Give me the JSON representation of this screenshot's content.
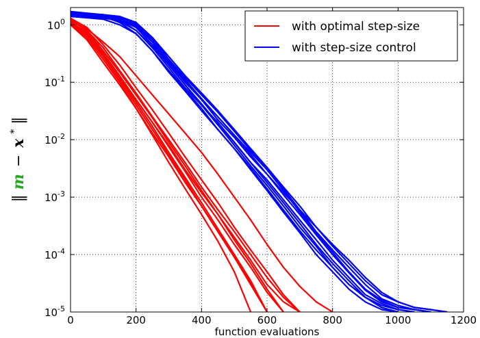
{
  "chart_data": {
    "type": "line",
    "title": "",
    "xlabel": "function evaluations",
    "ylabel": {
      "open": "‖",
      "m": "m",
      "minus": "−",
      "x": "x",
      "star": "*",
      "close": "‖"
    },
    "xlim": [
      0,
      1200
    ],
    "ylim": [
      1e-05,
      2
    ],
    "yscale": "log",
    "grid": true,
    "legend_position": "top-right",
    "x_ticks": [
      {
        "value": 0,
        "label": "0"
      },
      {
        "value": 200,
        "label": "200"
      },
      {
        "value": 400,
        "label": "400"
      },
      {
        "value": 600,
        "label": "600"
      },
      {
        "value": 800,
        "label": "800"
      },
      {
        "value": 1000,
        "label": "1000"
      },
      {
        "value": 1200,
        "label": "1200"
      }
    ],
    "y_ticks": [
      {
        "value": 1,
        "base": "10",
        "exp": "0"
      },
      {
        "value": 0.1,
        "base": "10",
        "exp": "-1"
      },
      {
        "value": 0.01,
        "base": "10",
        "exp": "-2"
      },
      {
        "value": 0.001,
        "base": "10",
        "exp": "-3"
      },
      {
        "value": 0.0001,
        "base": "10",
        "exp": "-4"
      },
      {
        "value": 1e-05,
        "base": "10",
        "exp": "-5"
      }
    ],
    "series": [
      {
        "name": "with optimal step-size",
        "color": "#ff0000",
        "runs": [
          {
            "x": [
              0,
              50,
              100,
              150,
              200,
              250,
              300,
              350,
              400,
              450,
              500,
              550,
              600
            ],
            "y": [
              1.1,
              0.7,
              0.3,
              0.12,
              0.045,
              0.017,
              0.006,
              0.0022,
              0.0008,
              0.00028,
              0.0001,
              3.5e-05,
              1e-05
            ]
          },
          {
            "x": [
              0,
              50,
              100,
              150,
              200,
              250,
              300,
              350,
              400,
              450,
              500,
              550,
              600,
              650
            ],
            "y": [
              1.2,
              0.8,
              0.35,
              0.15,
              0.06,
              0.024,
              0.009,
              0.0035,
              0.0013,
              0.0005,
              0.00018,
              7e-05,
              2.5e-05,
              1e-05
            ]
          },
          {
            "x": [
              0,
              50,
              100,
              150,
              200,
              250,
              300,
              350,
              400,
              450,
              500,
              550
            ],
            "y": [
              1.0,
              0.6,
              0.25,
              0.1,
              0.035,
              0.012,
              0.004,
              0.0014,
              0.0005,
              0.00017,
              5e-05,
              1e-05
            ]
          },
          {
            "x": [
              0,
              50,
              100,
              150,
              200,
              250,
              300,
              350,
              400,
              450,
              500,
              550,
              600,
              650,
              700
            ],
            "y": [
              1.3,
              0.9,
              0.45,
              0.2,
              0.08,
              0.033,
              0.013,
              0.005,
              0.002,
              0.0008,
              0.0003,
              0.00012,
              5e-05,
              2e-05,
              1e-05
            ]
          },
          {
            "x": [
              0,
              50,
              100,
              150,
              200,
              250,
              300,
              350,
              400,
              450,
              500,
              550,
              600,
              650
            ],
            "y": [
              1.1,
              0.75,
              0.32,
              0.13,
              0.05,
              0.02,
              0.0075,
              0.0028,
              0.001,
              0.0004,
              0.00015,
              6e-05,
              2.2e-05,
              1e-05
            ]
          },
          {
            "x": [
              0,
              50,
              100,
              150,
              200,
              250,
              300,
              350,
              400,
              450,
              500,
              550,
              600
            ],
            "y": [
              1.05,
              0.65,
              0.28,
              0.11,
              0.04,
              0.015,
              0.0055,
              0.002,
              0.0007,
              0.00025,
              9e-05,
              3e-05,
              1e-05
            ]
          },
          {
            "x": [
              0,
              50,
              100,
              150,
              200,
              250,
              300,
              350,
              400,
              450,
              500,
              550,
              600,
              650,
              700,
              750,
              800
            ],
            "y": [
              1.2,
              0.85,
              0.5,
              0.28,
              0.13,
              0.06,
              0.028,
              0.013,
              0.006,
              0.0025,
              0.001,
              0.0004,
              0.00015,
              6e-05,
              2.8e-05,
              1.5e-05,
              1e-05
            ]
          },
          {
            "x": [
              0,
              50,
              100,
              150,
              200,
              250,
              300,
              350,
              400,
              450,
              500,
              550,
              600,
              650,
              700
            ],
            "y": [
              1.15,
              0.7,
              0.3,
              0.12,
              0.05,
              0.02,
              0.008,
              0.003,
              0.0012,
              0.0005,
              0.0002,
              8e-05,
              3e-05,
              1.5e-05,
              1e-05
            ]
          },
          {
            "x": [
              0,
              50,
              100,
              150,
              200,
              250,
              300,
              350,
              400,
              450,
              500,
              550,
              600
            ],
            "y": [
              1.0,
              0.55,
              0.22,
              0.09,
              0.035,
              0.013,
              0.005,
              0.0018,
              0.0007,
              0.00025,
              9e-05,
              3.2e-05,
              1e-05
            ]
          },
          {
            "x": [
              0,
              50,
              100,
              150,
              200,
              250,
              300,
              350,
              400,
              450,
              500,
              550,
              600,
              650,
              700
            ],
            "y": [
              1.25,
              0.8,
              0.4,
              0.16,
              0.065,
              0.025,
              0.01,
              0.004,
              0.0015,
              0.0006,
              0.00025,
              0.0001,
              4e-05,
              1.8e-05,
              1e-05
            ]
          }
        ]
      },
      {
        "name": "with step-size control",
        "color": "#0000ff",
        "runs": [
          {
            "x": [
              0,
              100,
              150,
              200,
              250,
              300,
              350,
              400,
              450,
              500,
              550,
              600,
              650,
              700,
              750,
              800,
              850,
              900,
              950,
              1000
            ],
            "y": [
              1.6,
              1.5,
              1.3,
              1.0,
              0.5,
              0.2,
              0.09,
              0.04,
              0.018,
              0.008,
              0.0035,
              0.0016,
              0.0007,
              0.0003,
              0.00014,
              6e-05,
              3e-05,
              1.8e-05,
              1.2e-05,
              1e-05
            ]
          },
          {
            "x": [
              0,
              100,
              150,
              200,
              250,
              300,
              350,
              400,
              450,
              500,
              550,
              600,
              650,
              700,
              750,
              800,
              850,
              900,
              950,
              1000,
              1050
            ],
            "y": [
              1.5,
              1.4,
              1.2,
              0.8,
              0.4,
              0.18,
              0.08,
              0.04,
              0.02,
              0.009,
              0.004,
              0.002,
              0.0009,
              0.0004,
              0.00018,
              8e-05,
              4e-05,
              2e-05,
              1.4e-05,
              1.1e-05,
              1e-05
            ]
          },
          {
            "x": [
              0,
              100,
              150,
              200,
              250,
              300,
              350,
              400,
              450,
              500,
              550,
              600,
              650,
              700,
              750,
              800,
              850,
              900,
              950,
              1000,
              1050,
              1100
            ],
            "y": [
              1.7,
              1.5,
              1.4,
              1.1,
              0.6,
              0.25,
              0.11,
              0.05,
              0.025,
              0.012,
              0.006,
              0.003,
              0.0014,
              0.0006,
              0.00025,
              0.00012,
              6e-05,
              3e-05,
              1.7e-05,
              1.3e-05,
              1.1e-05,
              1e-05
            ]
          },
          {
            "x": [
              0,
              100,
              150,
              200,
              250,
              300,
              350,
              400,
              450,
              500,
              550,
              600,
              650,
              700,
              750,
              800,
              850,
              900,
              950,
              1000,
              1050,
              1100,
              1150
            ],
            "y": [
              1.4,
              1.3,
              1.2,
              0.9,
              0.45,
              0.22,
              0.1,
              0.05,
              0.022,
              0.011,
              0.005,
              0.0025,
              0.0012,
              0.0006,
              0.0003,
              0.00015,
              8e-05,
              4e-05,
              2.2e-05,
              1.5e-05,
              1.2e-05,
              1.1e-05,
              1e-05
            ]
          },
          {
            "x": [
              0,
              100,
              150,
              200,
              250,
              300,
              350,
              400,
              450,
              500,
              550,
              600,
              650,
              700,
              750,
              800,
              850,
              900,
              950,
              1000
            ],
            "y": [
              1.6,
              1.4,
              1.1,
              0.7,
              0.35,
              0.16,
              0.075,
              0.035,
              0.015,
              0.007,
              0.003,
              0.0013,
              0.00055,
              0.00024,
              0.0001,
              5e-05,
              2.5e-05,
              1.5e-05,
              1.1e-05,
              1e-05
            ]
          },
          {
            "x": [
              0,
              100,
              150,
              200,
              250,
              300,
              350,
              400,
              450,
              500,
              550,
              600,
              650,
              700,
              750,
              800,
              850,
              900,
              950,
              1000,
              1050,
              1100
            ],
            "y": [
              1.5,
              1.35,
              1.3,
              1.0,
              0.55,
              0.25,
              0.12,
              0.06,
              0.03,
              0.014,
              0.0065,
              0.003,
              0.0013,
              0.00055,
              0.00024,
              0.00011,
              5e-05,
              2.5e-05,
              1.6e-05,
              1.2e-05,
              1.1e-05,
              1e-05
            ]
          },
          {
            "x": [
              0,
              100,
              150,
              200,
              250,
              300,
              350,
              400,
              450,
              500,
              550,
              600,
              650,
              700,
              750,
              800,
              850,
              900,
              950,
              1000,
              1050
            ],
            "y": [
              1.4,
              1.25,
              1.0,
              0.7,
              0.35,
              0.15,
              0.07,
              0.032,
              0.015,
              0.007,
              0.0032,
              0.0014,
              0.0006,
              0.00026,
              0.00012,
              6e-05,
              3e-05,
              1.8e-05,
              1.3e-05,
              1.1e-05,
              1e-05
            ]
          },
          {
            "x": [
              0,
              100,
              150,
              200,
              250,
              300,
              350,
              400,
              450,
              500,
              550,
              600,
              650,
              700,
              750,
              800,
              850,
              900,
              950,
              1000,
              1050,
              1100,
              1150
            ],
            "y": [
              1.6,
              1.5,
              1.35,
              1.05,
              0.6,
              0.28,
              0.13,
              0.065,
              0.032,
              0.015,
              0.007,
              0.0033,
              0.0015,
              0.0007,
              0.0003,
              0.00014,
              7e-05,
              3.5e-05,
              2e-05,
              1.5e-05,
              1.2e-05,
              1.1e-05,
              1e-05
            ]
          },
          {
            "x": [
              0,
              100,
              150,
              200,
              250,
              300,
              350,
              400,
              450,
              500,
              550,
              600,
              650,
              700,
              750,
              800,
              850,
              900,
              950,
              1000
            ],
            "y": [
              1.5,
              1.35,
              1.15,
              0.8,
              0.42,
              0.2,
              0.09,
              0.042,
              0.019,
              0.009,
              0.004,
              0.0018,
              0.0008,
              0.00035,
              0.00015,
              7e-05,
              3.5e-05,
              1.8e-05,
              1.2e-05,
              1e-05
            ]
          },
          {
            "x": [
              0,
              100,
              150,
              200,
              250,
              300,
              350,
              400,
              450,
              500,
              550,
              600,
              650,
              700,
              750,
              800,
              850,
              900,
              950,
              1000,
              1050,
              1100
            ],
            "y": [
              1.55,
              1.45,
              1.25,
              0.95,
              0.5,
              0.23,
              0.11,
              0.052,
              0.025,
              0.012,
              0.0055,
              0.0025,
              0.0011,
              0.0005,
              0.00022,
              0.0001,
              4.8e-05,
              2.4e-05,
              1.5e-05,
              1.2e-05,
              1.1e-05,
              1e-05
            ]
          }
        ]
      }
    ]
  }
}
